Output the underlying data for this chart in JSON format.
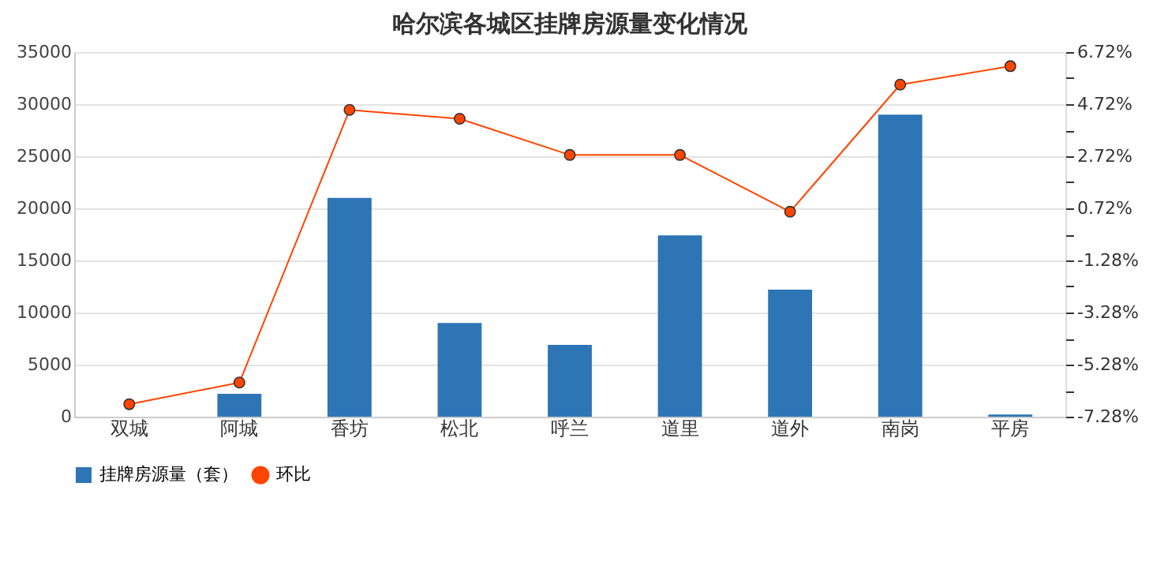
{
  "chart_data": {
    "type": "bar",
    "title": "哈尔滨各城区挂牌房源量变化情况",
    "categories": [
      "双城",
      "阿城",
      "香坊",
      "松北",
      "呼兰",
      "道里",
      "道外",
      "南岗",
      "平房"
    ],
    "series": [
      {
        "name": "挂牌房源量（套）",
        "color": "#2e75b6",
        "values": [
          0,
          2200,
          21000,
          9000,
          6900,
          17400,
          12200,
          29000,
          200
        ]
      },
      {
        "name": "环比",
        "type": "line",
        "axis": "y2",
        "color": "#ff4500",
        "marker": "circle",
        "values": [
          -6.8,
          -5.97,
          4.5,
          4.16,
          2.77,
          2.77,
          0.59,
          5.47,
          6.18
        ]
      }
    ],
    "ylim": [
      0,
      35000
    ],
    "yticks": [
      0,
      5000,
      10000,
      15000,
      20000,
      25000,
      30000,
      35000
    ],
    "y2lim": [
      -7.28,
      6.72
    ],
    "y2ticks": [
      {
        "value": -7.28,
        "label": "-7.28%"
      },
      {
        "value": -6.28,
        "label": null
      },
      {
        "value": -5.28,
        "label": "-5.28%"
      },
      {
        "value": -4.28,
        "label": null
      },
      {
        "value": -3.28,
        "label": "-3.28%"
      },
      {
        "value": -2.28,
        "label": null
      },
      {
        "value": -1.28,
        "label": "-1.28%"
      },
      {
        "value": -0.28,
        "label": null
      },
      {
        "value": 0.72,
        "label": "0.72%"
      },
      {
        "value": 1.72,
        "label": null
      },
      {
        "value": 2.72,
        "label": "2.72%"
      },
      {
        "value": 3.72,
        "label": null
      },
      {
        "value": 4.72,
        "label": "4.72%"
      },
      {
        "value": 5.72,
        "label": null
      },
      {
        "value": 6.72,
        "label": "6.72%"
      }
    ],
    "grid": "y",
    "legend": "bottom"
  }
}
